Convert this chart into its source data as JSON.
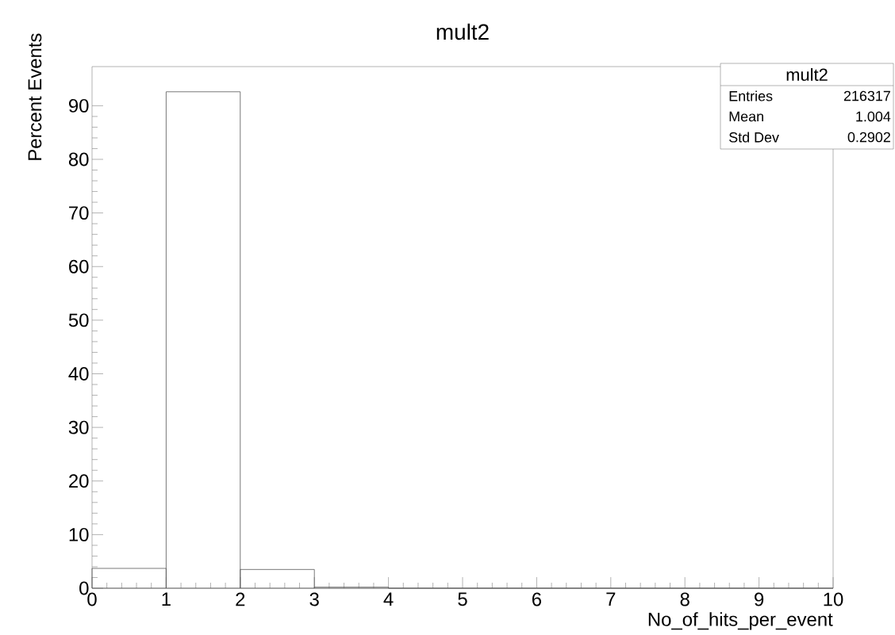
{
  "chart_data": {
    "type": "histogram",
    "title": "mult2",
    "xlabel": "No_of_hits_per_event",
    "ylabel": "Percent Events",
    "bins": [
      0,
      1,
      2,
      3,
      4,
      5,
      6,
      7,
      8,
      9,
      10
    ],
    "values": [
      3.7,
      92.6,
      3.5,
      0.2,
      0,
      0,
      0,
      0,
      0,
      0
    ],
    "color": "#555555",
    "xlim": [
      0,
      10
    ],
    "ylim": [
      0,
      97.3
    ],
    "xticks": [
      0,
      1,
      2,
      3,
      4,
      5,
      6,
      7,
      8,
      9,
      10
    ],
    "yticks": [
      0,
      10,
      20,
      30,
      40,
      50,
      60,
      70,
      80,
      90
    ],
    "grid": false,
    "annotations": [
      "mult2",
      "Entries",
      "216317",
      "Mean",
      "1.004",
      "Std Dev",
      "0.2902"
    ]
  }
}
